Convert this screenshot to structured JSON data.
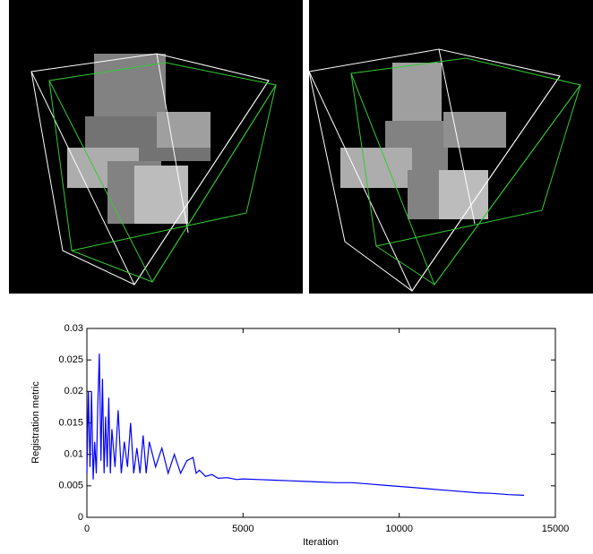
{
  "chart_data": {
    "type": "line",
    "xlabel": "Iteration",
    "ylabel": "Registration metric",
    "x": [
      0,
      50,
      100,
      150,
      200,
      250,
      300,
      350,
      400,
      450,
      500,
      550,
      600,
      650,
      700,
      750,
      800,
      900,
      1000,
      1100,
      1200,
      1300,
      1400,
      1500,
      1600,
      1700,
      1800,
      1900,
      2000,
      2200,
      2400,
      2600,
      2800,
      3000,
      3200,
      3400,
      3500,
      3600,
      3800,
      4000,
      4200,
      4500,
      4800,
      5000,
      5500,
      6000,
      6500,
      7000,
      7500,
      8000,
      8500,
      9000,
      9500,
      10000,
      10500,
      11000,
      11500,
      12000,
      12500,
      13000,
      13500,
      14000
    ],
    "series": [
      {
        "name": "Registration metric",
        "color": "#0000ff",
        "values": [
          0.007,
          0.02,
          0.008,
          0.02,
          0.006,
          0.012,
          0.007,
          0.018,
          0.026,
          0.009,
          0.022,
          0.007,
          0.016,
          0.008,
          0.019,
          0.007,
          0.014,
          0.008,
          0.017,
          0.007,
          0.012,
          0.008,
          0.015,
          0.007,
          0.011,
          0.007,
          0.013,
          0.007,
          0.012,
          0.008,
          0.011,
          0.007,
          0.01,
          0.007,
          0.009,
          0.0095,
          0.007,
          0.0075,
          0.0065,
          0.0068,
          0.0062,
          0.0063,
          0.006,
          0.0061,
          0.006,
          0.0059,
          0.0058,
          0.0057,
          0.0056,
          0.0055,
          0.0055,
          0.0053,
          0.0051,
          0.0049,
          0.0047,
          0.0045,
          0.0043,
          0.0041,
          0.0039,
          0.0038,
          0.0036,
          0.0035
        ]
      }
    ],
    "xlim": [
      0,
      15000
    ],
    "xticks": [
      0,
      5000,
      10000,
      15000
    ],
    "ylim": [
      0,
      0.03
    ],
    "yticks": [
      0,
      0.005,
      0.01,
      0.015,
      0.02,
      0.025,
      0.03
    ]
  }
}
